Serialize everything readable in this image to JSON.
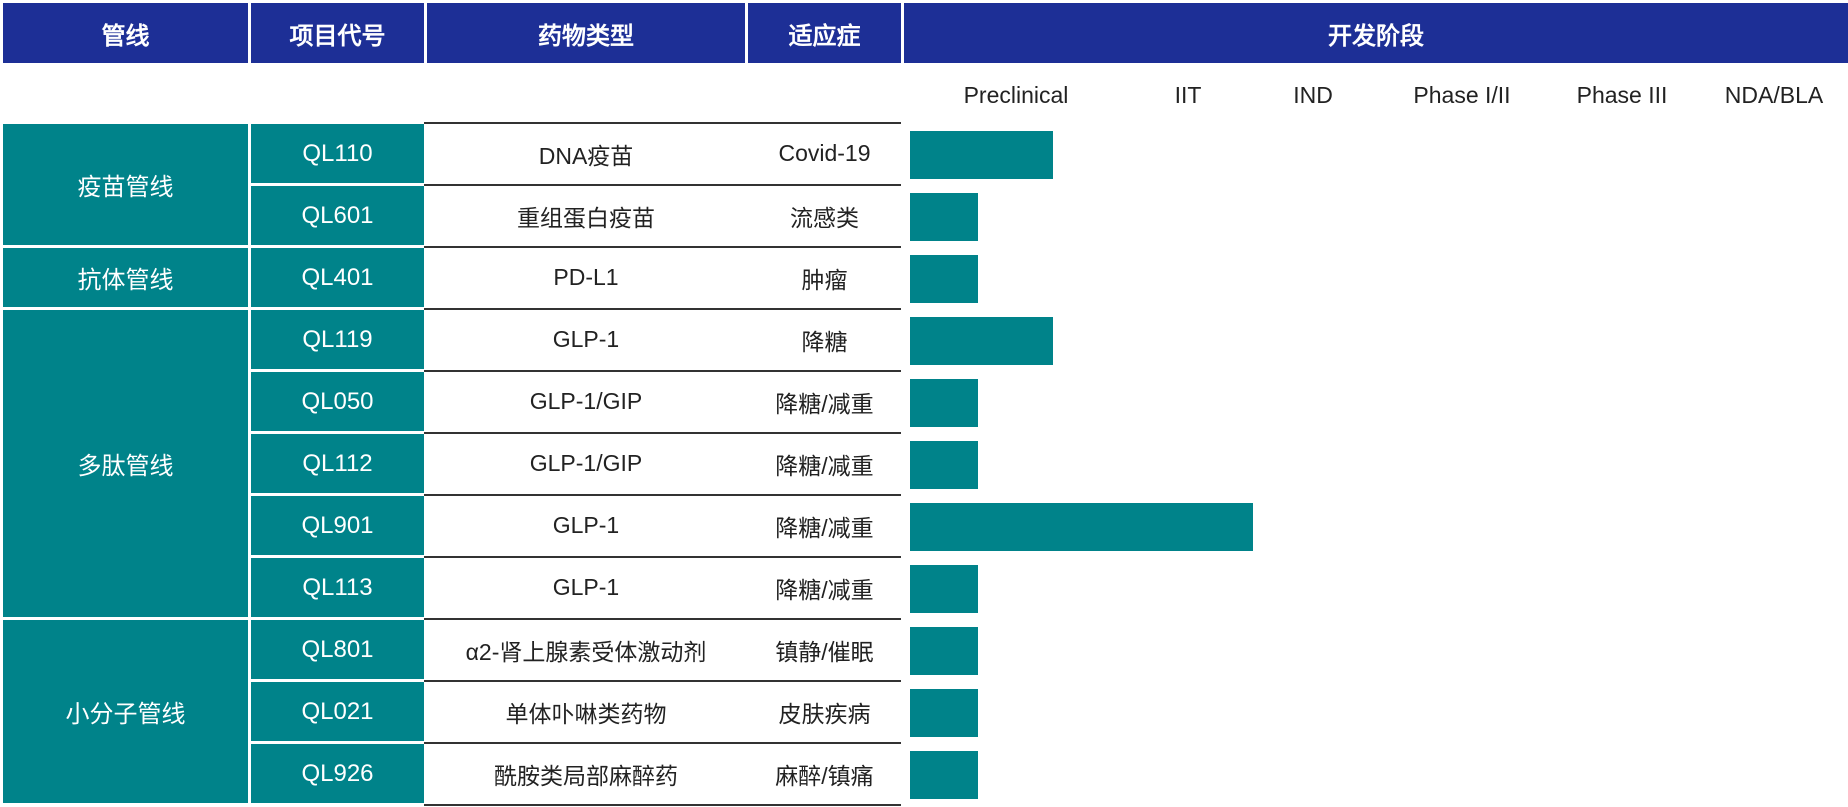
{
  "headers": {
    "pipeline": "管线",
    "code": "项目代号",
    "drug_type": "药物类型",
    "indication": "适应症",
    "stage": "开发阶段"
  },
  "colors": {
    "header_bg": "#1d2f96",
    "teal": "#00838a"
  },
  "chart_data": {
    "type": "bar",
    "orientation": "horizontal",
    "stages": [
      "Preclinical",
      "IIT",
      "IND",
      "Phase I/II",
      "Phase III",
      "NDA/BLA"
    ],
    "groups": [
      {
        "name": "疫苗管线",
        "rows": 2
      },
      {
        "name": "抗体管线",
        "rows": 1
      },
      {
        "name": "多肽管线",
        "rows": 5
      },
      {
        "name": "小分子管线",
        "rows": 3
      }
    ],
    "projects": [
      {
        "code": "QL110",
        "drug_type": "DNA疫苗",
        "indication": "Covid-19",
        "progress": 0.9
      },
      {
        "code": "QL601",
        "drug_type": "重组蛋白疫苗",
        "indication": "流感类",
        "progress": 0.42
      },
      {
        "code": "QL401",
        "drug_type": "PD-L1",
        "indication": "肿瘤",
        "progress": 0.42
      },
      {
        "code": "QL119",
        "drug_type": "GLP-1",
        "indication": "降糖",
        "progress": 0.9
      },
      {
        "code": "QL050",
        "drug_type": "GLP-1/GIP",
        "indication": "降糖/减重",
        "progress": 0.42
      },
      {
        "code": "QL112",
        "drug_type": "GLP-1/GIP",
        "indication": "降糖/减重",
        "progress": 0.42
      },
      {
        "code": "QL901",
        "drug_type": "GLP-1",
        "indication": "降糖/减重",
        "progress": 2.1
      },
      {
        "code": "QL113",
        "drug_type": "GLP-1",
        "indication": "降糖/减重",
        "progress": 0.42
      },
      {
        "code": "QL801",
        "drug_type": "α2-肾上腺素受体激动剂",
        "indication": "镇静/催眠",
        "progress": 0.42
      },
      {
        "code": "QL021",
        "drug_type": "单体卟啉类药物",
        "indication": "皮肤疾病",
        "progress": 0.42
      },
      {
        "code": "QL926",
        "drug_type": "酰胺类局部麻醉药",
        "indication": "麻醉/镇痛",
        "progress": 0.42
      }
    ]
  }
}
